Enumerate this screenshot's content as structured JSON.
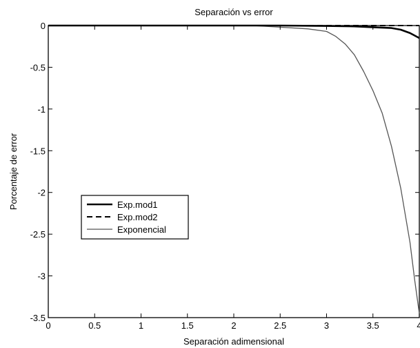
{
  "chart_data": {
    "type": "line",
    "title": "Separación vs error",
    "xlabel": "Separación adimensional",
    "ylabel": "Porcentaje de error",
    "xlim": [
      0,
      4
    ],
    "ylim": [
      -3.5,
      0
    ],
    "xticks": [
      0,
      0.5,
      1,
      1.5,
      2,
      2.5,
      3,
      3.5,
      4
    ],
    "xtick_labels": [
      "0",
      "0.5",
      "1",
      "1.5",
      "2",
      "2.5",
      "3",
      "3.5",
      "4"
    ],
    "yticks": [
      0,
      -0.5,
      -1,
      -1.5,
      -2,
      -2.5,
      -3,
      -3.5
    ],
    "ytick_labels": [
      "0",
      "-0.5",
      "-1",
      "-1.5",
      "-2",
      "-2.5",
      "-3",
      "-3.5"
    ],
    "grid": false,
    "legend_position": "lower-left",
    "series": [
      {
        "name": "Exp.mod1",
        "style": "solid-thick",
        "color": "#000000",
        "x": [
          0,
          0.5,
          1,
          1.5,
          2,
          2.5,
          3,
          3.3,
          3.5,
          3.7,
          3.8,
          3.9,
          3.95,
          4.0
        ],
        "y": [
          0,
          0,
          0,
          0,
          0,
          0,
          -0.005,
          -0.01,
          -0.02,
          -0.03,
          -0.05,
          -0.09,
          -0.12,
          -0.15
        ]
      },
      {
        "name": "Exp.mod2",
        "style": "dashed",
        "color": "#000000",
        "x": [
          0,
          0.5,
          1,
          1.5,
          2,
          2.5,
          3,
          3.5,
          4.0
        ],
        "y": [
          0,
          0,
          0,
          0,
          0,
          0,
          0,
          0,
          0
        ]
      },
      {
        "name": "Exponencial",
        "style": "solid-thin",
        "color": "#555555",
        "x": [
          2.2,
          2.5,
          2.8,
          3.0,
          3.1,
          3.2,
          3.3,
          3.4,
          3.5,
          3.6,
          3.7,
          3.8,
          3.9,
          3.95,
          4.0
        ],
        "y": [
          0,
          -0.02,
          -0.04,
          -0.07,
          -0.13,
          -0.22,
          -0.35,
          -0.55,
          -0.78,
          -1.05,
          -1.45,
          -1.95,
          -2.6,
          -3.05,
          -3.45
        ]
      }
    ]
  }
}
